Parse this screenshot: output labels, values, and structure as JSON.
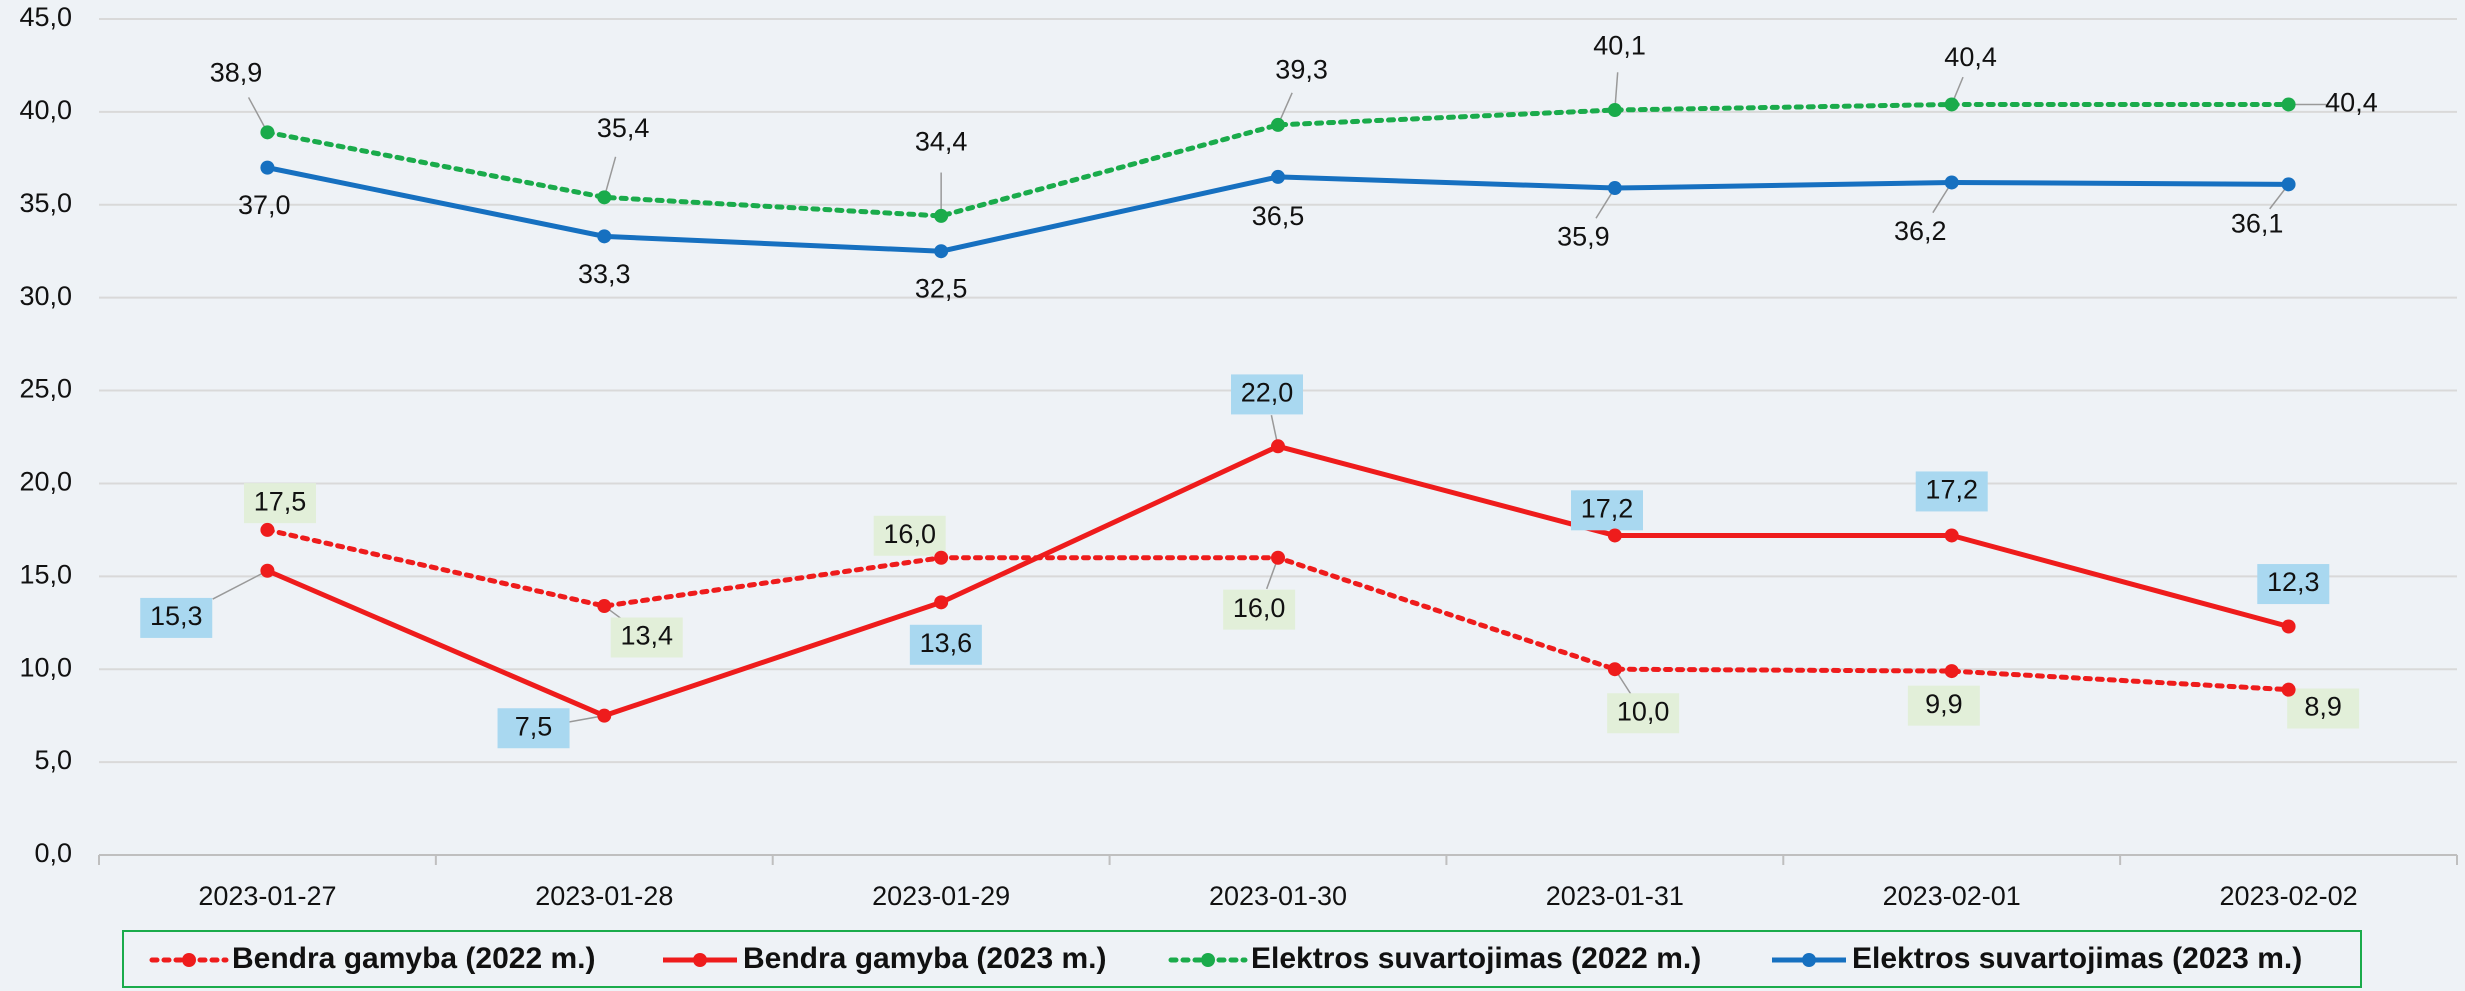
{
  "chart_data": {
    "type": "line",
    "categories": [
      "2023-01-27",
      "2023-01-28",
      "2023-01-29",
      "2023-01-30",
      "2023-01-31",
      "2023-02-01",
      "2023-02-02"
    ],
    "series": [
      {
        "name": "Bendra gamyba (2022 m.)",
        "color": "#ee1c1c",
        "dash": true,
        "label_bg": "#e2efd9",
        "values": [
          17.5,
          13.4,
          16.0,
          16.0,
          10.0,
          9.9,
          8.9
        ],
        "value_labels": [
          "17,5",
          "13,4",
          "16,0",
          "16,0",
          "10,0",
          "9,9",
          "8,9"
        ]
      },
      {
        "name": "Bendra gamyba (2023 m.)",
        "color": "#ee1c1c",
        "dash": false,
        "label_bg": "#a9d8f0",
        "values": [
          15.3,
          7.5,
          13.6,
          22.0,
          17.2,
          17.2,
          12.3
        ],
        "value_labels": [
          "15,3",
          "7,5",
          "13,6",
          "22,0",
          "17,2",
          "17,2",
          "12,3"
        ]
      },
      {
        "name": "Elektros suvartojimas (2022 m.)",
        "color": "#1aab4b",
        "dash": true,
        "values": [
          38.9,
          35.4,
          34.4,
          39.3,
          40.1,
          40.4,
          40.4
        ],
        "value_labels": [
          "38,9",
          "35,4",
          "34,4",
          "39,3",
          "40,1",
          "40,4",
          "40,4"
        ]
      },
      {
        "name": "Elektros suvartojimas (2023 m.)",
        "color": "#1670c0",
        "dash": false,
        "values": [
          37.0,
          33.3,
          32.5,
          36.5,
          35.9,
          36.2,
          36.1
        ],
        "value_labels": [
          "37,0",
          "33,3",
          "32,5",
          "36,5",
          "35,9",
          "36,2",
          "36,1"
        ]
      }
    ],
    "ylim": [
      0,
      45
    ],
    "yticks": [
      {
        "value": 0,
        "label": "0,0"
      },
      {
        "value": 5,
        "label": "5,0"
      },
      {
        "value": 10,
        "label": "10,0"
      },
      {
        "value": 15,
        "label": "15,0"
      },
      {
        "value": 20,
        "label": "20,0"
      },
      {
        "value": 25,
        "label": "25,0"
      },
      {
        "value": 30,
        "label": "30,0"
      },
      {
        "value": 35,
        "label": "35,0"
      },
      {
        "value": 40,
        "label": "40,0"
      },
      {
        "value": 45,
        "label": "45,0"
      }
    ],
    "grid": true,
    "legend": "bottom"
  }
}
